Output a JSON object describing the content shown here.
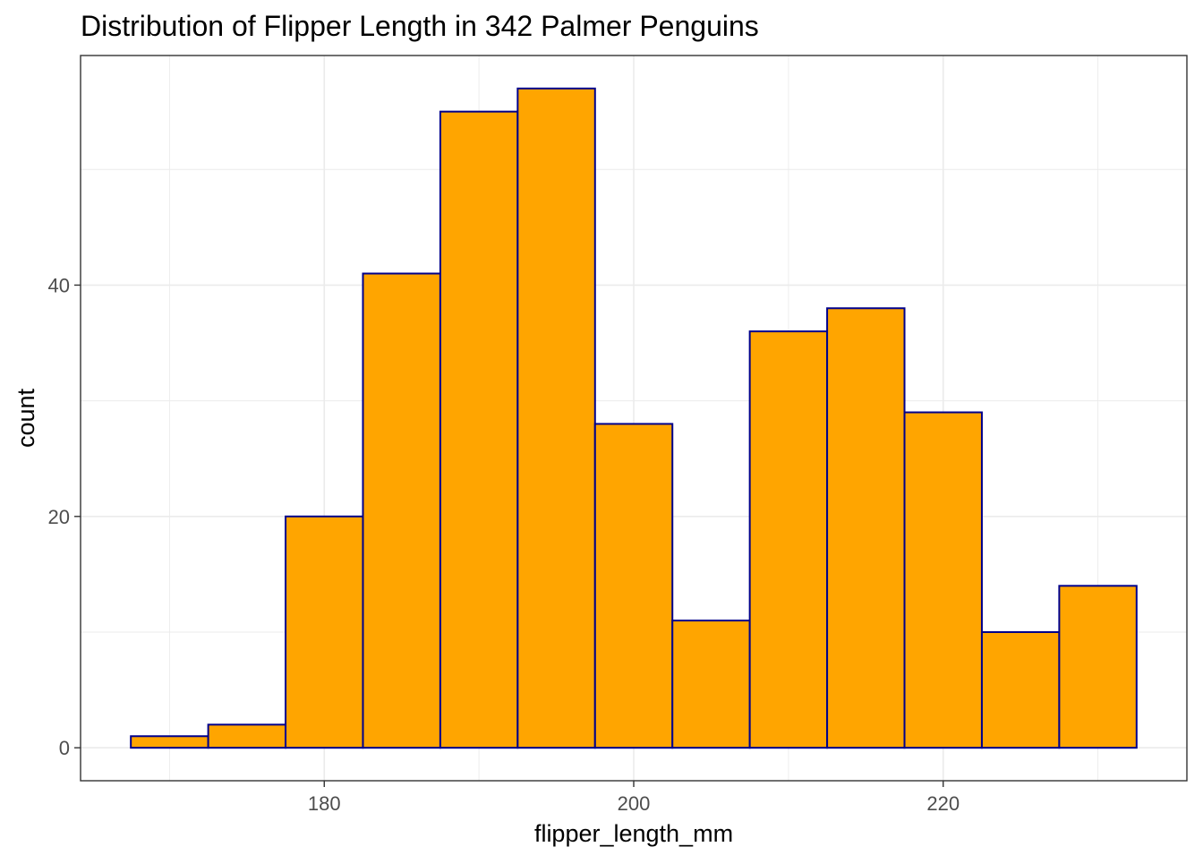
{
  "chart_data": {
    "type": "bar",
    "title": "Distribution of Flipper Length in 342 Palmer Penguins",
    "xlabel": "flipper_length_mm",
    "ylabel": "count",
    "bins": [
      {
        "x0": 167.5,
        "x1": 172.5,
        "count": 1
      },
      {
        "x0": 172.5,
        "x1": 177.5,
        "count": 2
      },
      {
        "x0": 177.5,
        "x1": 182.5,
        "count": 20
      },
      {
        "x0": 182.5,
        "x1": 187.5,
        "count": 41
      },
      {
        "x0": 187.5,
        "x1": 192.5,
        "count": 55
      },
      {
        "x0": 192.5,
        "x1": 197.5,
        "count": 57
      },
      {
        "x0": 197.5,
        "x1": 202.5,
        "count": 28
      },
      {
        "x0": 202.5,
        "x1": 207.5,
        "count": 11
      },
      {
        "x0": 207.5,
        "x1": 212.5,
        "count": 36
      },
      {
        "x0": 212.5,
        "x1": 217.5,
        "count": 38
      },
      {
        "x0": 217.5,
        "x1": 222.5,
        "count": 29
      },
      {
        "x0": 222.5,
        "x1": 227.5,
        "count": 10
      },
      {
        "x0": 227.5,
        "x1": 232.5,
        "count": 14
      }
    ],
    "xlim": [
      164.25,
      235.75
    ],
    "ylim": [
      -2.85,
      59.85
    ],
    "x_ticks": [
      180,
      200,
      220
    ],
    "y_ticks": [
      0,
      20,
      40
    ],
    "grid": true,
    "colors": {
      "bar_fill": "#FFA500",
      "bar_outline": "#00008B",
      "grid": "#EBEBEB",
      "panel_border": "#333333",
      "tick_text": "#4D4D4D"
    }
  }
}
